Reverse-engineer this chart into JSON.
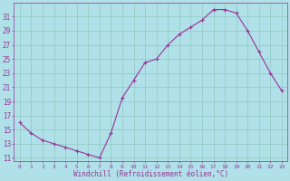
{
  "x": [
    0,
    1,
    2,
    3,
    4,
    5,
    6,
    7,
    8,
    9,
    10,
    11,
    12,
    13,
    14,
    15,
    16,
    17,
    18,
    19,
    20,
    21,
    22,
    23
  ],
  "y": [
    16,
    14.5,
    13.5,
    13,
    12.5,
    12,
    11.5,
    11,
    14.5,
    19.5,
    22,
    24.5,
    25,
    27,
    28.5,
    29.5,
    30.5,
    32,
    32,
    31.5,
    29,
    26,
    23,
    20.5
  ],
  "line_color": "#993399",
  "marker": "+",
  "bg_color": "#b0e0e8",
  "grid_color": "#90c8c0",
  "xlabel": "Windchill (Refroidissement éolien,°C)",
  "xlabel_color": "#993399",
  "ytick_labels": [
    "11",
    "13",
    "15",
    "17",
    "19",
    "21",
    "23",
    "25",
    "27",
    "29",
    "31"
  ],
  "ytick_values": [
    11,
    13,
    15,
    17,
    19,
    21,
    23,
    25,
    27,
    29,
    31
  ],
  "ylim": [
    10.5,
    33.0
  ],
  "xlim": [
    -0.5,
    23.5
  ],
  "tick_color": "#993399",
  "font_color": "#993399",
  "font_name": "monospace",
  "title_color": "#993399"
}
